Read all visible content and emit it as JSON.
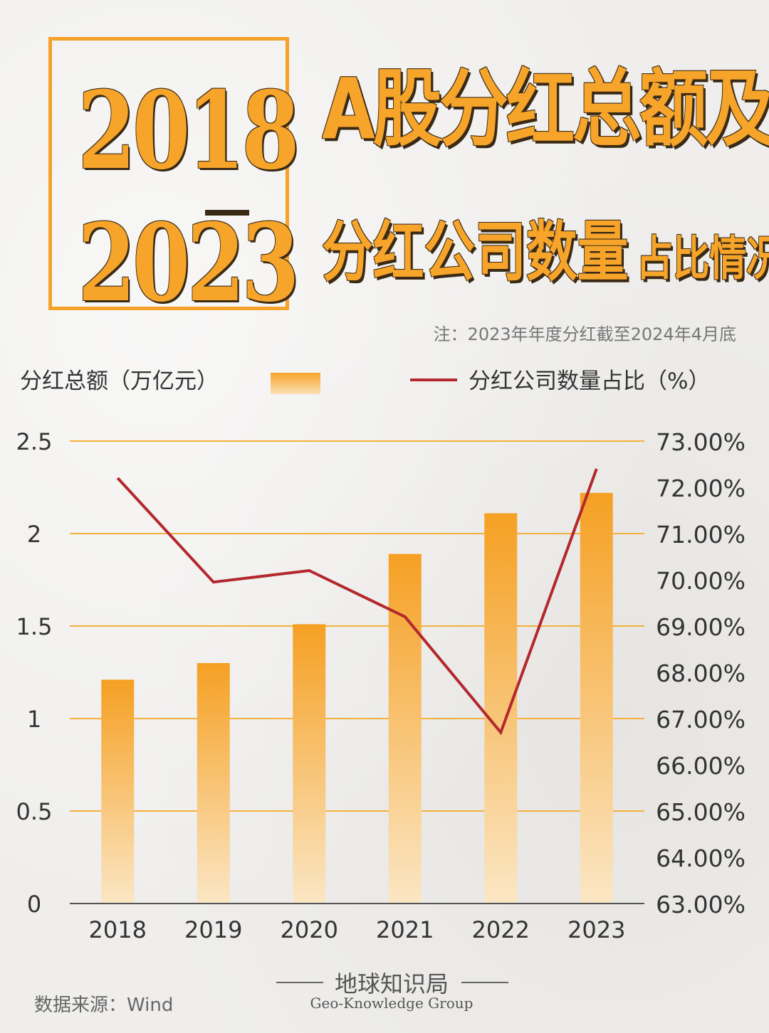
{
  "header": {
    "year_start": "2018",
    "year_end": "2023",
    "title_line1": "A股分红总额及",
    "title_line2_main": "分红公司数量",
    "title_line2_small": "占比情况",
    "note": "注：2023年年度分红截至2024年4月底"
  },
  "legend": {
    "left_label": "分红总额（万亿元）",
    "right_label": "分红公司数量占比（%）"
  },
  "footer": {
    "brand_cn": "地球知识局",
    "brand_en": "Geo-Knowledge Group",
    "source": "数据来源：Wind"
  },
  "colors": {
    "bar_top": "#f5a023",
    "bar_bottom": "#fbe6c4",
    "line": "#b3282d",
    "grid": "#f5b13c",
    "title": "#f7a42a",
    "title_shadow": "#3a2a15"
  },
  "chart_data": {
    "type": "bar",
    "categories": [
      "2018",
      "2019",
      "2020",
      "2021",
      "2022",
      "2023"
    ],
    "series": [
      {
        "name": "分红总额（万亿元）",
        "type": "bar",
        "axis": "left",
        "values": [
          1.21,
          1.3,
          1.51,
          1.89,
          2.11,
          2.22
        ]
      },
      {
        "name": "分红公司数量占比（%）",
        "type": "line",
        "axis": "right",
        "values": [
          72.2,
          69.95,
          70.2,
          69.2,
          66.7,
          72.4
        ]
      }
    ],
    "y_left": {
      "ylim": [
        0,
        2.5
      ],
      "ticks": [
        "0",
        "0.5",
        "1",
        "1.5",
        "2",
        "2.5"
      ],
      "tick_values": [
        0,
        0.5,
        1,
        1.5,
        2,
        2.5
      ]
    },
    "y_right": {
      "ylim": [
        63,
        73
      ],
      "ticks": [
        "63.00%",
        "64.00%",
        "65.00%",
        "66.00%",
        "67.00%",
        "68.00%",
        "69.00%",
        "70.00%",
        "71.00%",
        "72.00%",
        "73.00%"
      ],
      "tick_values": [
        63,
        64,
        65,
        66,
        67,
        68,
        69,
        70,
        71,
        72,
        73
      ]
    },
    "grid": true,
    "legend": "top"
  }
}
